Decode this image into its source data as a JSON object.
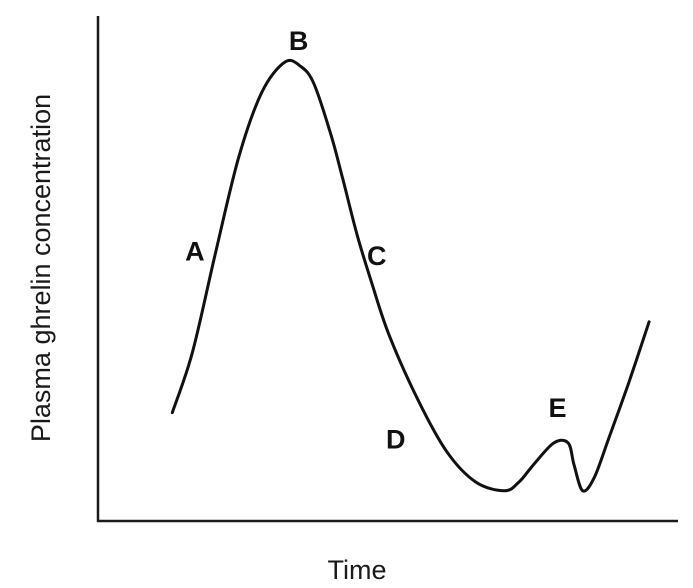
{
  "chart_data": {
    "type": "line",
    "title": "",
    "xlabel": "Time",
    "ylabel": "Plasma ghrelin concentration",
    "x_ticks": false,
    "y_ticks": false,
    "grid": false,
    "xlim": [
      0,
      100
    ],
    "ylim": [
      0,
      100
    ],
    "series": [
      {
        "x": [
          12.5,
          16.0,
          20.0,
          24.0,
          28.0,
          32.0,
          34.7,
          37.0,
          40.0,
          42.0,
          44.5,
          47.0,
          50.0,
          55.0,
          60.0,
          65.0,
          70.0,
          72.5,
          75.0,
          78.5,
          81.0,
          82.0,
          83.5,
          85.5,
          88.0,
          91.5,
          95.0
        ],
        "values": [
          19,
          33,
          56,
          78,
          93,
          100,
          99,
          95,
          83,
          73,
          60,
          49,
          37,
          22,
          10,
          3,
          1,
          3,
          7,
          12,
          12,
          7,
          1,
          4,
          13,
          26,
          40
        ]
      }
    ],
    "annotations": [
      {
        "label": "A",
        "x": 23.0,
        "y": 56.0
      },
      {
        "label": "B",
        "x": 34.7,
        "y": 100.0
      },
      {
        "label": "C",
        "x": 47.0,
        "y": 49.0
      },
      {
        "label": "D",
        "x": 56.0,
        "y": 19.0
      },
      {
        "label": "E",
        "x": 79.5,
        "y": 12.0
      }
    ]
  }
}
